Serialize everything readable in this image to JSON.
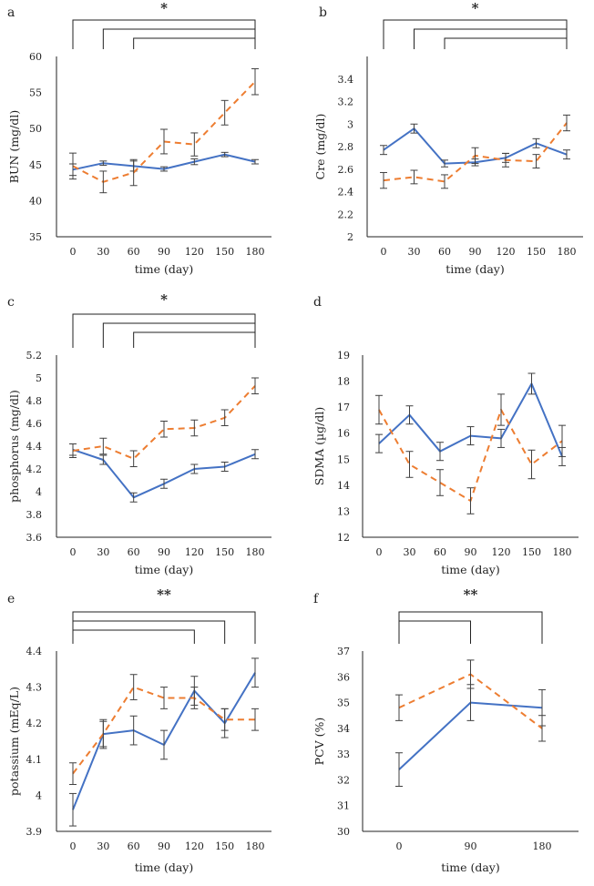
{
  "colors": {
    "control": "#4472c4",
    "treated": "#ed7d31",
    "axis": "#222222",
    "errorbar": "#404040"
  },
  "chart_data": [
    {
      "panel": "a",
      "type": "line",
      "xlabel": "time (day)",
      "ylabel": "BUN (mg/dl)",
      "categories": [
        0,
        30,
        60,
        90,
        120,
        150,
        180
      ],
      "yticks": [
        35,
        40,
        45,
        50,
        55,
        60
      ],
      "ylim": [
        35,
        60
      ],
      "series": [
        {
          "name": "solid",
          "style": "solid",
          "values": [
            44.3,
            45.2,
            44.8,
            44.4,
            45.4,
            46.4,
            45.4
          ],
          "errors": [
            0.8,
            0.3,
            0.7,
            0.3,
            0.4,
            0.3,
            0.3
          ]
        },
        {
          "name": "dashed",
          "style": "dashed",
          "values": [
            44.8,
            42.6,
            43.9,
            48.2,
            47.8,
            52.2,
            56.5
          ],
          "errors": [
            1.8,
            1.5,
            1.8,
            1.7,
            1.6,
            1.7,
            1.8
          ]
        }
      ],
      "significance": {
        "label": "*",
        "brackets": [
          [
            0,
            6
          ],
          [
            1,
            6
          ],
          [
            2,
            6
          ]
        ]
      }
    },
    {
      "panel": "b",
      "type": "line",
      "xlabel": "time  (day)",
      "ylabel": "Cre (mg/dl)",
      "categories": [
        0,
        30,
        60,
        90,
        120,
        150,
        180
      ],
      "yticks": [
        "2",
        "2.2",
        "2.4",
        "2.6",
        "2.8",
        "3",
        "3.2",
        "3.4"
      ],
      "ylim": [
        2,
        3.6
      ],
      "series": [
        {
          "name": "solid",
          "style": "solid",
          "values": [
            2.77,
            2.96,
            2.65,
            2.66,
            2.7,
            2.83,
            2.73
          ],
          "errors": [
            0.04,
            0.04,
            0.03,
            0.03,
            0.04,
            0.04,
            0.04
          ]
        },
        {
          "name": "dashed",
          "style": "dashed",
          "values": [
            2.5,
            2.53,
            2.49,
            2.72,
            2.68,
            2.67,
            3.01
          ],
          "errors": [
            0.07,
            0.06,
            0.06,
            0.07,
            0.06,
            0.06,
            0.07
          ]
        }
      ],
      "significance": {
        "label": "*",
        "brackets": [
          [
            0,
            6
          ],
          [
            1,
            6
          ],
          [
            2,
            6
          ]
        ]
      }
    },
    {
      "panel": "c",
      "type": "line",
      "xlabel": "time (day)",
      "ylabel": "phosphorus (mg/dl)",
      "categories": [
        0,
        30,
        60,
        90,
        120,
        150,
        180
      ],
      "yticks": [
        "3.6",
        "3.8",
        "4",
        "4.2",
        "4.4",
        "4.6",
        "4.8",
        "5",
        "5.2"
      ],
      "ylim": [
        3.6,
        5.2
      ],
      "series": [
        {
          "name": "solid",
          "style": "solid",
          "values": [
            4.37,
            4.28,
            3.95,
            4.07,
            4.2,
            4.22,
            4.33
          ],
          "errors": [
            0.05,
            0.04,
            0.04,
            0.04,
            0.04,
            0.04,
            0.04
          ]
        },
        {
          "name": "dashed",
          "style": "dashed",
          "values": [
            4.36,
            4.4,
            4.29,
            4.55,
            4.56,
            4.65,
            4.93
          ],
          "errors": [
            0.06,
            0.07,
            0.07,
            0.07,
            0.07,
            0.07,
            0.07
          ]
        }
      ],
      "significance": {
        "label": "*",
        "brackets": [
          [
            0,
            6
          ],
          [
            1,
            6
          ],
          [
            2,
            6
          ]
        ]
      }
    },
    {
      "panel": "d",
      "type": "line",
      "xlabel": "time (day)",
      "ylabel": "SDMA (µg/dl)",
      "categories": [
        0,
        30,
        60,
        90,
        120,
        150,
        180
      ],
      "yticks": [
        12,
        13,
        14,
        15,
        16,
        17,
        18,
        19
      ],
      "ylim": [
        12,
        19
      ],
      "series": [
        {
          "name": "solid",
          "style": "solid",
          "values": [
            15.6,
            16.7,
            15.3,
            15.9,
            15.8,
            17.9,
            15.1
          ],
          "errors": [
            0.35,
            0.35,
            0.35,
            0.35,
            0.35,
            0.4,
            0.35
          ]
        },
        {
          "name": "dashed",
          "style": "dashed",
          "values": [
            16.9,
            14.8,
            14.1,
            13.4,
            16.9,
            14.8,
            15.7
          ],
          "errors": [
            0.55,
            0.5,
            0.5,
            0.5,
            0.6,
            0.55,
            0.6
          ]
        }
      ]
    },
    {
      "panel": "e",
      "type": "line",
      "xlabel": "time (day)",
      "ylabel": "potassium (mEq/L)",
      "categories": [
        0,
        30,
        60,
        90,
        120,
        150,
        180
      ],
      "yticks": [
        "3.9",
        "4",
        "4.1",
        "4.2",
        "4.3",
        "4.4"
      ],
      "ylim": [
        3.9,
        4.4
      ],
      "series": [
        {
          "name": "solid",
          "style": "solid",
          "values": [
            3.96,
            4.17,
            4.18,
            4.14,
            4.29,
            4.2,
            4.34
          ],
          "errors": [
            0.045,
            0.04,
            0.04,
            0.04,
            0.04,
            0.04,
            0.04
          ]
        },
        {
          "name": "dashed",
          "style": "dashed",
          "values": [
            4.06,
            4.17,
            4.3,
            4.27,
            4.27,
            4.21,
            4.21
          ],
          "errors": [
            0.03,
            0.035,
            0.035,
            0.03,
            0.03,
            0.03,
            0.03
          ]
        }
      ],
      "significance": {
        "label": "**",
        "brackets": [
          [
            0,
            6
          ],
          [
            0,
            5
          ],
          [
            0,
            4
          ]
        ]
      }
    },
    {
      "panel": "f",
      "type": "line",
      "xlabel": "time (day)",
      "ylabel": "PCV (%)",
      "categories": [
        0,
        90,
        180
      ],
      "yticks": [
        30,
        31,
        32,
        33,
        34,
        35,
        36,
        37
      ],
      "ylim": [
        30,
        37
      ],
      "series": [
        {
          "name": "solid",
          "style": "solid",
          "values": [
            32.4,
            35.0,
            34.8
          ],
          "errors": [
            0.65,
            0.7,
            0.7
          ]
        },
        {
          "name": "dashed",
          "style": "dashed",
          "values": [
            34.8,
            36.1,
            34.0
          ],
          "errors": [
            0.5,
            0.55,
            0.5
          ]
        }
      ],
      "significance": {
        "label": "**",
        "brackets": [
          [
            0,
            2
          ],
          [
            0,
            1
          ]
        ]
      }
    }
  ]
}
